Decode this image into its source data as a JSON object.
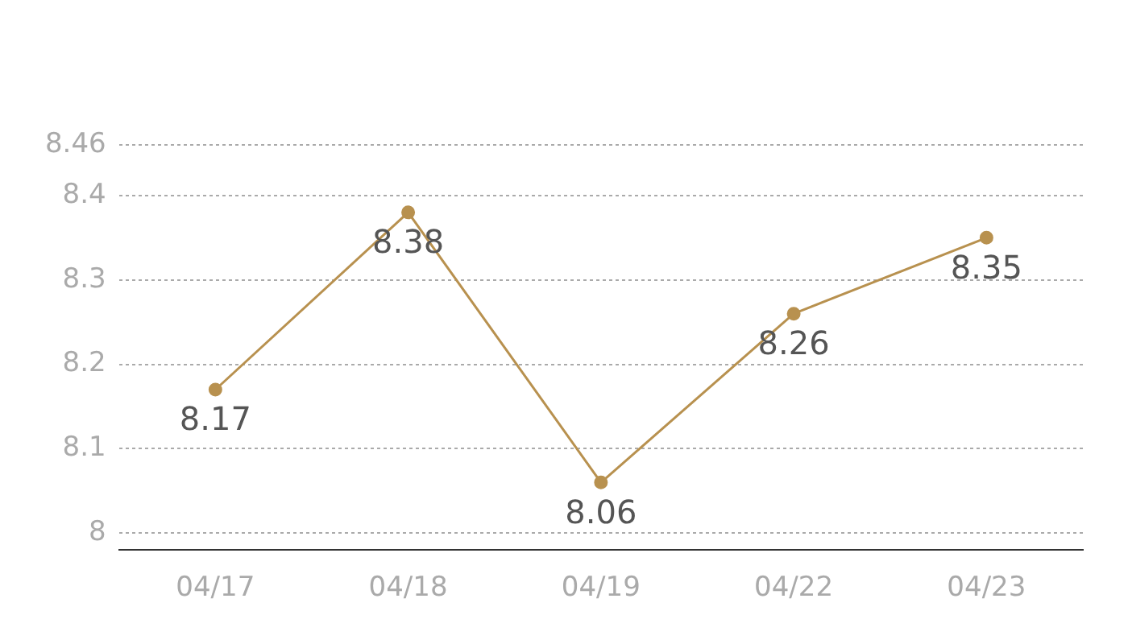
{
  "chart_data": {
    "type": "line",
    "categories": [
      "04/17",
      "04/18",
      "04/19",
      "04/22",
      "04/23"
    ],
    "series": [
      {
        "color": "#b8914f",
        "values": [
          8.17,
          8.38,
          8.06,
          8.26,
          8.35
        ]
      }
    ],
    "ylim": [
      7.98,
      8.46
    ],
    "yticks": [
      8,
      8.1,
      8.2,
      8.3,
      8.4,
      8.46
    ],
    "grid": "y",
    "legend": false,
    "marker": "circle",
    "line_style": "solid",
    "data_labels": true
  }
}
